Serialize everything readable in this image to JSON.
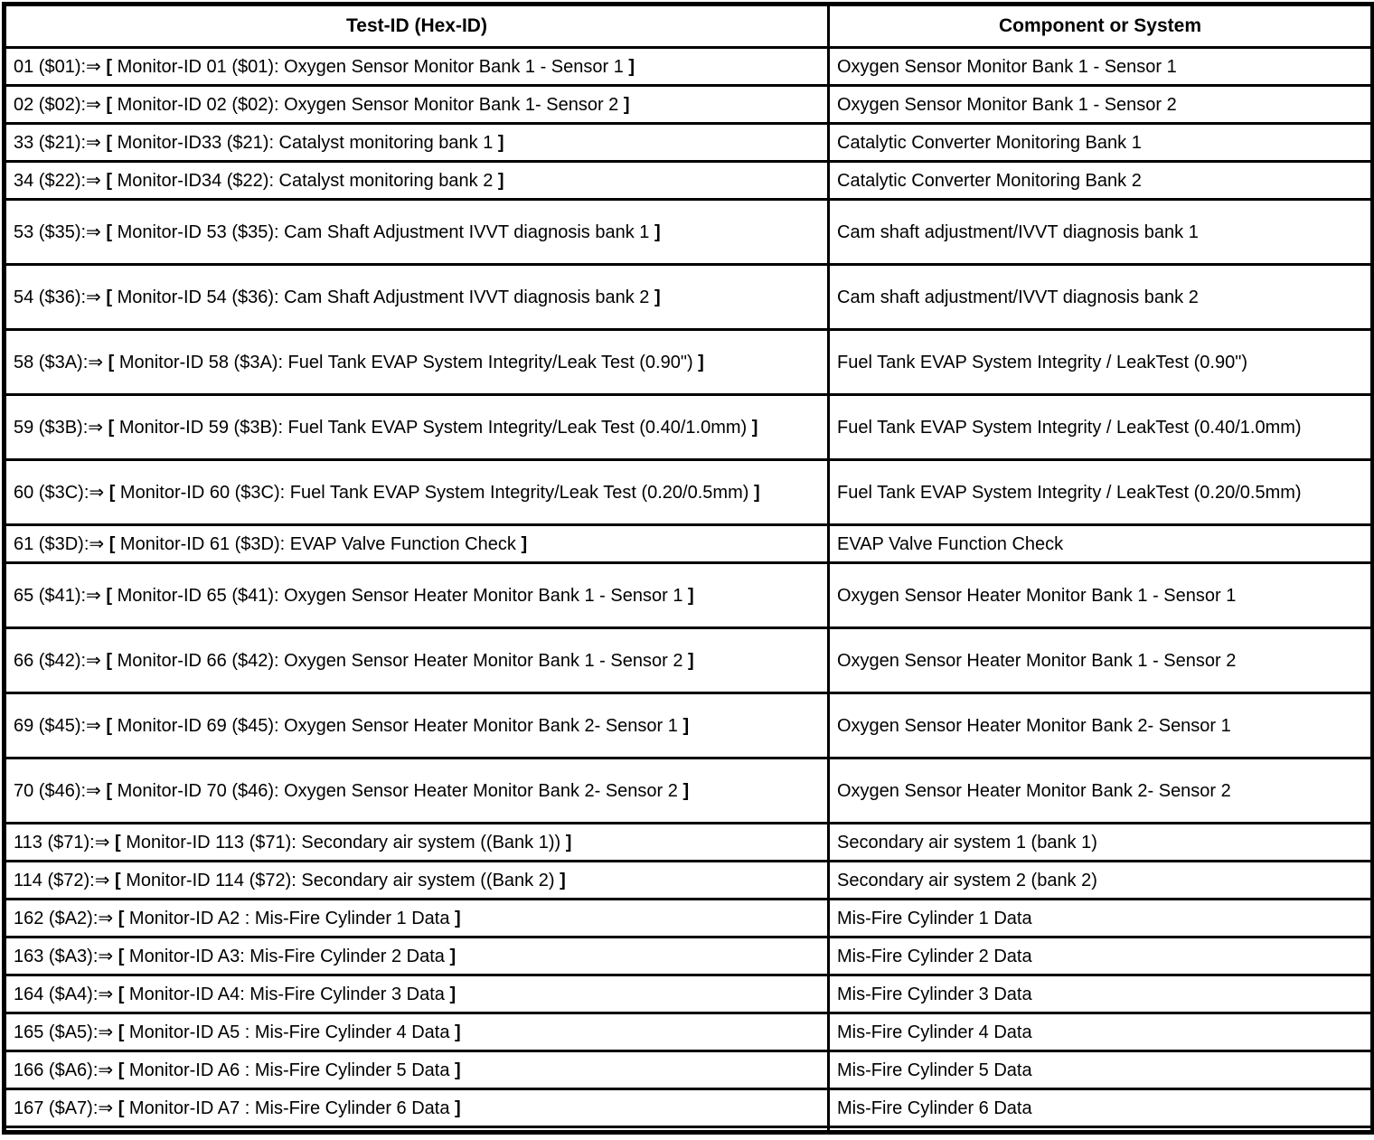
{
  "header": {
    "col1": "Test-ID (Hex-ID)",
    "col2": "Component or System"
  },
  "colors": {
    "border": "#000000",
    "background": "#ffffff",
    "text": "#000000"
  },
  "rows": [
    {
      "test_id": "01 ($01):⇒ [ Monitor-ID 01 ($01): Oxygen Sensor Monitor Bank 1 - Sensor 1 ]",
      "component": "Oxygen Sensor Monitor Bank 1 - Sensor 1"
    },
    {
      "test_id": "02 ($02):⇒ [ Monitor-ID 02 ($02): Oxygen Sensor Monitor Bank 1- Sensor 2 ]",
      "component": "Oxygen Sensor Monitor Bank 1 - Sensor 2"
    },
    {
      "test_id": "33 ($21):⇒ [ Monitor-ID33 ($21): Catalyst monitoring bank 1 ]",
      "component": "Catalytic Converter Monitoring Bank 1"
    },
    {
      "test_id": "34 ($22):⇒ [ Monitor-ID34 ($22): Catalyst monitoring bank 2 ]",
      "component": "Catalytic Converter Monitoring Bank 2"
    },
    {
      "test_id": "53 ($35):⇒ [ Monitor-ID 53 ($35): Cam Shaft Adjustment IVVT diagnosis bank 1 ]",
      "component": "Cam shaft adjustment/IVVT diagnosis bank 1"
    },
    {
      "test_id": "54 ($36):⇒ [ Monitor-ID 54 ($36): Cam Shaft Adjustment IVVT diagnosis bank 2 ]",
      "component": "Cam shaft adjustment/IVVT diagnosis bank 2"
    },
    {
      "test_id": "58 ($3A):⇒ [ Monitor-ID 58 ($3A): Fuel Tank EVAP System Integrity/Leak Test (0.90\") ]",
      "component": "Fuel Tank EVAP System Integrity / LeakTest (0.90\")"
    },
    {
      "test_id": "59 ($3B):⇒ [ Monitor-ID 59 ($3B): Fuel Tank EVAP System Integrity/Leak Test (0.40/1.0mm) ]",
      "component": "Fuel Tank EVAP System Integrity / LeakTest (0.40/1.0mm)"
    },
    {
      "test_id": "60 ($3C):⇒ [ Monitor-ID 60 ($3C): Fuel Tank EVAP System Integrity/Leak Test (0.20/0.5mm) ]",
      "component": "Fuel Tank EVAP System Integrity / LeakTest (0.20/0.5mm)"
    },
    {
      "test_id": "61 ($3D):⇒ [ Monitor-ID 61 ($3D): EVAP Valve Function Check ]",
      "component": "EVAP Valve Function Check"
    },
    {
      "test_id": "65 ($41):⇒ [ Monitor-ID 65 ($41): Oxygen Sensor Heater Monitor Bank 1 - Sensor 1 ]",
      "component": "Oxygen Sensor Heater Monitor Bank 1 - Sensor 1"
    },
    {
      "test_id": "66 ($42):⇒ [ Monitor-ID 66 ($42): Oxygen Sensor Heater Monitor Bank 1 - Sensor 2 ]",
      "component": "Oxygen Sensor Heater Monitor Bank 1 - Sensor 2"
    },
    {
      "test_id": "69 ($45):⇒ [ Monitor-ID 69 ($45): Oxygen Sensor Heater Monitor Bank 2- Sensor 1 ]",
      "component": "Oxygen Sensor Heater Monitor Bank 2- Sensor 1"
    },
    {
      "test_id": "70 ($46):⇒ [ Monitor-ID 70 ($46): Oxygen Sensor Heater Monitor Bank 2- Sensor 2 ]",
      "component": "Oxygen Sensor Heater Monitor Bank 2- Sensor 2"
    },
    {
      "test_id": "113 ($71):⇒ [ Monitor-ID 113 ($71): Secondary air system ((Bank 1)) ]",
      "component": "Secondary air system 1 (bank 1)"
    },
    {
      "test_id": "114 ($72):⇒ [ Monitor-ID 114 ($72): Secondary air system ((Bank 2) ]",
      "component": "Secondary air system 2 (bank 2)"
    },
    {
      "test_id": "162 ($A2):⇒ [ Monitor-ID A2 : Mis-Fire Cylinder 1 Data ]",
      "component": "Mis-Fire Cylinder 1 Data"
    },
    {
      "test_id": "163 ($A3):⇒ [ Monitor-ID A3: Mis-Fire Cylinder 2 Data ]",
      "component": "Mis-Fire Cylinder 2 Data"
    },
    {
      "test_id": "164 ($A4):⇒ [ Monitor-ID A4: Mis-Fire Cylinder 3 Data ]",
      "component": "Mis-Fire Cylinder 3 Data"
    },
    {
      "test_id": "165 ($A5):⇒ [ Monitor-ID A5 : Mis-Fire Cylinder 4 Data ]",
      "component": "Mis-Fire Cylinder 4 Data"
    },
    {
      "test_id": "166 ($A6):⇒ [ Monitor-ID A6 : Mis-Fire Cylinder 5 Data ]",
      "component": "Mis-Fire Cylinder 5 Data"
    },
    {
      "test_id": "167 ($A7):⇒ [ Monitor-ID A7 : Mis-Fire Cylinder 6 Data ]",
      "component": "Mis-Fire Cylinder 6 Data"
    }
  ]
}
